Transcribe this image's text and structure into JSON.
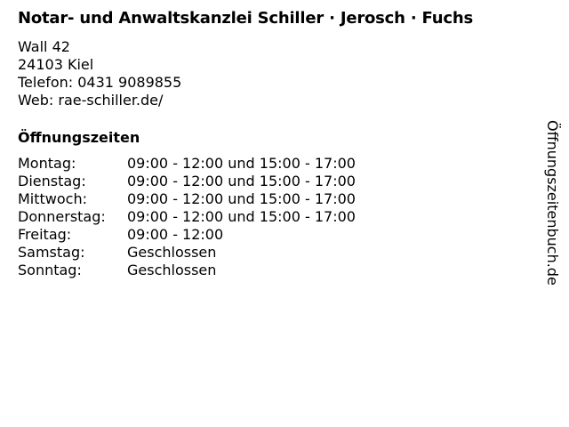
{
  "title": "Notar- und Anwaltskanzlei Schiller · Jerosch · Fuchs",
  "address": {
    "street": "Wall 42",
    "city": "24103 Kiel",
    "phone": "Telefon: 0431 9089855",
    "web": "Web: rae-schiller.de/"
  },
  "hours_heading": "Öffnungszeiten",
  "hours": [
    {
      "day": "Montag:",
      "time": "09:00 - 12:00 und 15:00 - 17:00"
    },
    {
      "day": "Dienstag:",
      "time": "09:00 - 12:00 und 15:00 - 17:00"
    },
    {
      "day": "Mittwoch:",
      "time": "09:00 - 12:00 und 15:00 - 17:00"
    },
    {
      "day": "Donnerstag:",
      "time": "09:00 - 12:00 und 15:00 - 17:00"
    },
    {
      "day": "Freitag:",
      "time": "09:00 - 12:00"
    },
    {
      "day": "Samstag:",
      "time": "Geschlossen"
    },
    {
      "day": "Sonntag:",
      "time": "Geschlossen"
    }
  ],
  "watermark": "Öffnungszeitenbuch.de"
}
